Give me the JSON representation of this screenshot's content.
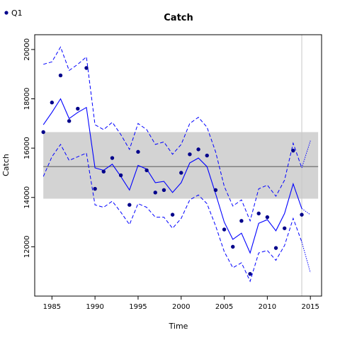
{
  "chart_data": {
    "type": "line",
    "title": "Catch",
    "xlabel": "Time",
    "ylabel": "Catch",
    "xlim": [
      1983,
      2016.3
    ],
    "ylim": [
      10000,
      20600
    ],
    "xticks": [
      1985,
      1990,
      1995,
      2000,
      2005,
      2010,
      2015
    ],
    "yticks": [
      12000,
      14000,
      16000,
      18000,
      20000
    ],
    "legend": {
      "position": "top-left",
      "entries": [
        "Q1"
      ]
    },
    "colors": {
      "fit": "#0000ff",
      "points": "#00008b",
      "band": "#d3d3d3",
      "mean": "#808080",
      "vline": "#c8c8c8"
    },
    "reference_band": {
      "x": [
        1984,
        2015.9
      ],
      "low": 13950,
      "high": 16650,
      "mean": 15250
    },
    "vertical_line": 2014,
    "series": [
      {
        "name": "Q1",
        "role": "observations",
        "x": [
          1984,
          1985,
          1986,
          1987,
          1988,
          1989,
          1990,
          1991,
          1992,
          1993,
          1994,
          1995,
          1996,
          1997,
          1998,
          1999,
          2000,
          2001,
          2002,
          2003,
          2004,
          2005,
          2006,
          2007,
          2008,
          2009,
          2010,
          2011,
          2012,
          2013,
          2014
        ],
        "values": [
          16650,
          17850,
          18950,
          17100,
          17600,
          19250,
          14350,
          15050,
          15600,
          14900,
          13700,
          15850,
          15100,
          14200,
          14300,
          13300,
          15000,
          15750,
          15950,
          15700,
          14300,
          12700,
          12000,
          13050,
          10900,
          13350,
          13200,
          11950,
          12750,
          15900,
          13300
        ]
      },
      {
        "role": "fit",
        "x": [
          1984,
          1985,
          1986,
          1987,
          1988,
          1989,
          1990,
          1991,
          1992,
          1993,
          1994,
          1995,
          1996,
          1997,
          1998,
          1999,
          2000,
          2001,
          2002,
          2003,
          2004,
          2005,
          2006,
          2007,
          2008,
          2009,
          2010,
          2011,
          2012,
          2013,
          2014
        ],
        "values": [
          16950,
          17450,
          18000,
          17200,
          17450,
          17650,
          15200,
          15100,
          15350,
          14850,
          14300,
          15300,
          15150,
          14600,
          14650,
          14200,
          14600,
          15400,
          15600,
          15250,
          14150,
          13000,
          12300,
          12550,
          11750,
          12950,
          13100,
          12650,
          13350,
          14550,
          13550
        ],
        "upper": [
          19400,
          19500,
          20100,
          19150,
          19400,
          19700,
          16950,
          16750,
          17050,
          16550,
          15950,
          17000,
          16750,
          16150,
          16250,
          15750,
          16150,
          17000,
          17250,
          16850,
          15850,
          14450,
          13650,
          13900,
          13050,
          14350,
          14500,
          14050,
          14700,
          16200,
          15200
        ],
        "lower": [
          14850,
          15650,
          16150,
          15500,
          15650,
          15800,
          13700,
          13600,
          13850,
          13400,
          12900,
          13750,
          13600,
          13200,
          13200,
          12750,
          13150,
          13900,
          14100,
          13750,
          12850,
          11800,
          11150,
          11350,
          10600,
          11750,
          11850,
          11450,
          12050,
          13150,
          12200
        ]
      },
      {
        "role": "forecast",
        "x": [
          2014,
          2015
        ],
        "values": [
          13550,
          13300
        ],
        "upper": [
          15200,
          16300
        ],
        "lower": [
          12200,
          10950
        ]
      }
    ]
  }
}
